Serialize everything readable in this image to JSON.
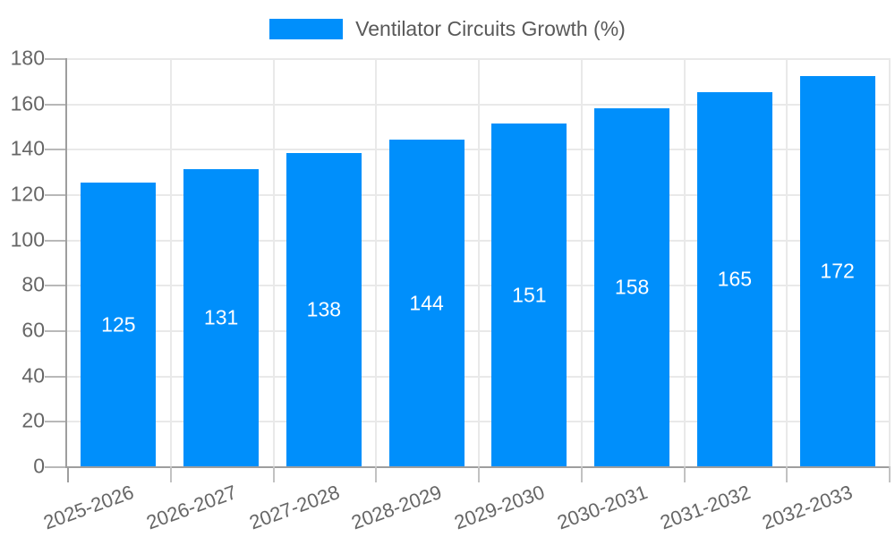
{
  "chart_data": {
    "type": "bar",
    "title": "Ventilator Circuits Growth (%)",
    "categories": [
      "2025-2026",
      "2026-2027",
      "2027-2028",
      "2028-2029",
      "2029-2030",
      "2030-2031",
      "2031-2032",
      "2032-2033"
    ],
    "values": [
      125,
      131,
      138,
      144,
      151,
      158,
      165,
      172
    ],
    "ylim": [
      0,
      180
    ],
    "ytick_step": 20,
    "y_tick_labels": [
      "0",
      "20",
      "40",
      "60",
      "80",
      "100",
      "120",
      "140",
      "160",
      "180"
    ],
    "grid": true,
    "legend_position": "top",
    "xlabel": "",
    "ylabel": "",
    "colors": {
      "bar": "#008FFB",
      "value_label": "#ffffff",
      "grid": "#e9e9e9",
      "axis": "#9e9e9e",
      "tick": "#c2c2c2",
      "tick_label": "#666666",
      "legend_text": "#595959"
    }
  }
}
